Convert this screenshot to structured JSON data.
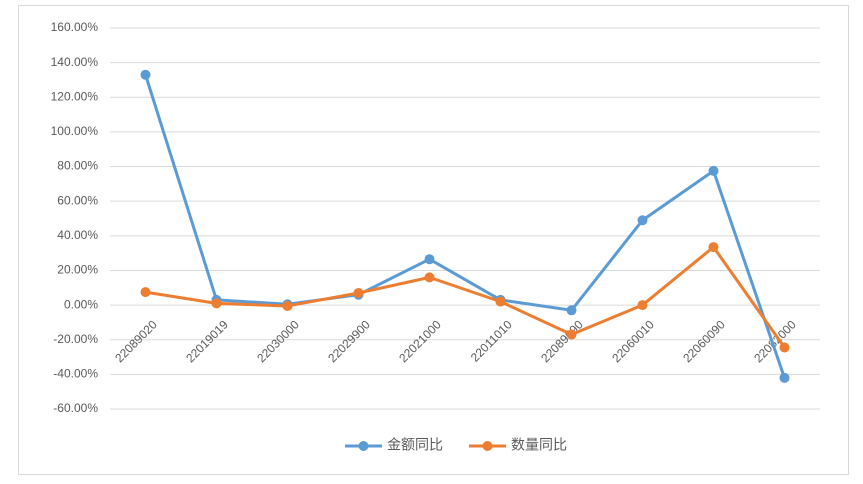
{
  "chart_data": {
    "type": "line",
    "categories": [
      "22089020",
      "22019019",
      "22030000",
      "22029900",
      "22021000",
      "22011010",
      "22089090",
      "22060010",
      "22060090",
      "22082000"
    ],
    "series": [
      {
        "name": "金额同比",
        "color": "#5b9bd5",
        "values": [
          133,
          3,
          0.5,
          6,
          26.5,
          3,
          -3,
          49,
          77.5,
          -42
        ]
      },
      {
        "name": "数量同比",
        "color": "#ed7d31",
        "values": [
          7.5,
          1,
          -0.5,
          7,
          16,
          2,
          -17,
          0,
          33.5,
          -24.5
        ]
      }
    ],
    "ylim": [
      -60,
      160
    ],
    "yticks": [
      {
        "value": -60,
        "label": "-60.00%"
      },
      {
        "value": -40,
        "label": "-40.00%"
      },
      {
        "value": -20,
        "label": "-20.00%"
      },
      {
        "value": 0,
        "label": "0.00%"
      },
      {
        "value": 20,
        "label": "20.00%"
      },
      {
        "value": 40,
        "label": "40.00%"
      },
      {
        "value": 60,
        "label": "60.00%"
      },
      {
        "value": 80,
        "label": "80.00%"
      },
      {
        "value": 100,
        "label": "100.00%"
      },
      {
        "value": 120,
        "label": "120.00%"
      },
      {
        "value": 140,
        "label": "140.00%"
      },
      {
        "value": 160,
        "label": "160.00%"
      }
    ],
    "grid": true,
    "legend": "bottom"
  }
}
